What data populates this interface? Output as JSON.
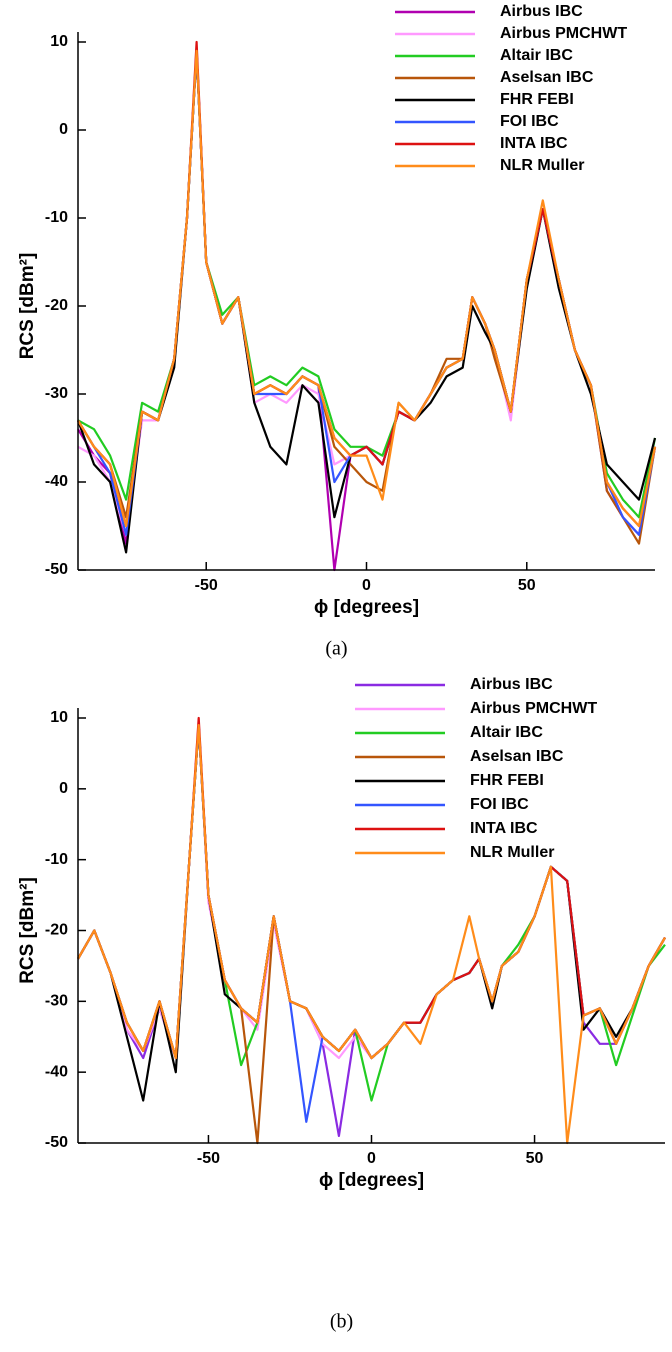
{
  "chart_data": [
    {
      "type": "line",
      "caption": "(a)",
      "xlabel": "ϕ [degrees]",
      "ylabel": "RCS [dBm²]",
      "xlim": [
        -90,
        90
      ],
      "ylim": [
        -50,
        10
      ],
      "xticks": [
        -50,
        0,
        50
      ],
      "yticks": [
        -50,
        -40,
        -30,
        -20,
        -10,
        0,
        10
      ],
      "legend": "upper right",
      "x": [
        -90,
        -85,
        -80,
        -75,
        -70,
        -65,
        -60,
        -56,
        -53,
        -50,
        -45,
        -40,
        -35,
        -30,
        -25,
        -20,
        -15,
        -10,
        -5,
        0,
        5,
        10,
        15,
        20,
        25,
        30,
        33,
        37,
        40,
        45,
        50,
        55,
        60,
        65,
        70,
        75,
        80,
        85,
        90
      ],
      "series": [
        {
          "name": "Airbus IBC",
          "color": "#b000b0",
          "values": [
            -34,
            -37,
            -39,
            -47,
            -32,
            -33,
            -26,
            -10,
            9,
            -15,
            -22,
            -19,
            -30,
            -29,
            -30,
            -28,
            -29,
            -50,
            -37,
            -36,
            -38,
            -32,
            -33,
            -30,
            -27,
            -26,
            -19,
            -22,
            -25,
            -32,
            -17,
            -9,
            -17,
            -25,
            -29,
            -41,
            -44,
            -46,
            -36
          ]
        },
        {
          "name": "Airbus PMCHWT",
          "color": "#ff99ff",
          "values": [
            -36,
            -37,
            -40,
            -46,
            -33,
            -33,
            -26,
            -10,
            9,
            -15,
            -22,
            -19,
            -31,
            -30,
            -31,
            -29,
            -30,
            -38,
            -37,
            -36,
            -38,
            -32,
            -33,
            -30,
            -27,
            -26,
            -19,
            -22,
            -25,
            -33,
            -17,
            -9,
            -17,
            -25,
            -29,
            -40,
            -44,
            -46,
            -36
          ]
        },
        {
          "name": "Altair IBC",
          "color": "#22cc22",
          "values": [
            -33,
            -34,
            -37,
            -42,
            -31,
            -32,
            -26,
            -10,
            9,
            -15,
            -21,
            -19,
            -29,
            -28,
            -29,
            -27,
            -28,
            -34,
            -36,
            -36,
            -37,
            -32,
            -33,
            -30,
            -27,
            -26,
            -19,
            -22,
            -25,
            -32,
            -17,
            -9,
            -17,
            -25,
            -29,
            -39,
            -42,
            -44,
            -35
          ]
        },
        {
          "name": "Aselsan IBC",
          "color": "#b8560a",
          "values": [
            -33,
            -36,
            -38,
            -44,
            -32,
            -33,
            -26,
            -10,
            9,
            -15,
            -22,
            -19,
            -30,
            -29,
            -30,
            -28,
            -29,
            -36,
            -38,
            -40,
            -41,
            -31,
            -33,
            -30,
            -26,
            -26,
            -19,
            -22,
            -26,
            -32,
            -17,
            -9,
            -17,
            -25,
            -29,
            -41,
            -44,
            -47,
            -36
          ]
        },
        {
          "name": "FHR FEBI",
          "color": "#000000",
          "values": [
            -33,
            -38,
            -40,
            -48,
            -32,
            -33,
            -27,
            -10,
            9,
            -15,
            -22,
            -19,
            -31,
            -36,
            -38,
            -29,
            -31,
            -44,
            -37,
            -36,
            -38,
            -32,
            -33,
            -31,
            -28,
            -27,
            -20,
            -23,
            -25,
            -32,
            -18,
            -9,
            -18,
            -25,
            -30,
            -38,
            -40,
            -42,
            -35
          ]
        },
        {
          "name": "FOI IBC",
          "color": "#3355ff",
          "values": [
            -33,
            -36,
            -39,
            -46,
            -32,
            -33,
            -26,
            -10,
            9,
            -15,
            -22,
            -19,
            -30,
            -30,
            -30,
            -28,
            -29,
            -40,
            -37,
            -36,
            -38,
            -32,
            -33,
            -30,
            -27,
            -26,
            -19,
            -22,
            -25,
            -32,
            -17,
            -9,
            -17,
            -25,
            -29,
            -40,
            -44,
            -46,
            -36
          ]
        },
        {
          "name": "INTA IBC",
          "color": "#dd1111",
          "values": [
            -33,
            -36,
            -38,
            -45,
            -32,
            -33,
            -26,
            -10,
            10,
            -15,
            -22,
            -19,
            -30,
            -29,
            -30,
            -28,
            -29,
            -35,
            -37,
            -36,
            -38,
            -32,
            -33,
            -30,
            -27,
            -26,
            -19,
            -22,
            -25,
            -32,
            -17,
            -9,
            -17,
            -25,
            -29,
            -40,
            -43,
            -45,
            -36
          ]
        },
        {
          "name": "NLR Muller",
          "color": "#ff8c1a",
          "values": [
            -33,
            -36,
            -38,
            -45,
            -32,
            -33,
            -26,
            -10,
            9,
            -15,
            -22,
            -19,
            -30,
            -29,
            -30,
            -28,
            -29,
            -35,
            -37,
            -37,
            -42,
            -31,
            -33,
            -30,
            -27,
            -26,
            -19,
            -22,
            -25,
            -32,
            -17,
            -8,
            -17,
            -25,
            -29,
            -40,
            -43,
            -45,
            -36
          ]
        }
      ]
    },
    {
      "type": "line",
      "caption": "(b)",
      "xlabel": "ϕ [degrees]",
      "ylabel": "RCS [dBm²]",
      "xlim": [
        -90,
        90
      ],
      "ylim": [
        -50,
        10
      ],
      "xticks": [
        -50,
        0,
        50
      ],
      "yticks": [
        -50,
        -40,
        -30,
        -20,
        -10,
        0,
        10
      ],
      "legend": "upper right",
      "x": [
        -90,
        -85,
        -80,
        -75,
        -70,
        -65,
        -60,
        -56,
        -53,
        -50,
        -45,
        -40,
        -35,
        -30,
        -25,
        -20,
        -15,
        -10,
        -5,
        0,
        5,
        10,
        15,
        20,
        25,
        30,
        33,
        37,
        40,
        45,
        50,
        55,
        60,
        65,
        70,
        75,
        80,
        85,
        90
      ],
      "series": [
        {
          "name": "Airbus IBC",
          "color": "#8a2be2",
          "values": [
            -24,
            -20,
            -26,
            -34,
            -38,
            -31,
            -38,
            -11,
            9,
            -15,
            -27,
            -31,
            -33,
            -18,
            -30,
            -31,
            -36,
            -49,
            -34,
            -38,
            -36,
            -33,
            -33,
            -29,
            -27,
            -26,
            -24,
            -30,
            -25,
            -23,
            -18,
            -11,
            -13,
            -33,
            -36,
            -36,
            -31,
            -25,
            -21
          ]
        },
        {
          "name": "Airbus PMCHWT",
          "color": "#ff99ff",
          "values": [
            -24,
            -20,
            -26,
            -34,
            -37,
            -31,
            -38,
            -11,
            9,
            -16,
            -27,
            -31,
            -34,
            -19,
            -30,
            -31,
            -36,
            -38,
            -35,
            -38,
            -36,
            -33,
            -33,
            -29,
            -27,
            -26,
            -24,
            -30,
            -25,
            -23,
            -18,
            -11,
            -13,
            -32,
            -31,
            -36,
            -31,
            -25,
            -21
          ]
        },
        {
          "name": "Altair IBC",
          "color": "#22cc22",
          "values": [
            -24,
            -20,
            -26,
            -33,
            -37,
            -30,
            -38,
            -11,
            9,
            -15,
            -27,
            -39,
            -33,
            -18,
            -30,
            -31,
            -35,
            -37,
            -34,
            -44,
            -36,
            -33,
            -33,
            -29,
            -27,
            -26,
            -24,
            -30,
            -25,
            -22,
            -18,
            -11,
            -13,
            -32,
            -31,
            -39,
            -32,
            -25,
            -22
          ]
        },
        {
          "name": "Aselsan IBC",
          "color": "#b8560a",
          "values": [
            -24,
            -20,
            -26,
            -33,
            -37,
            -30,
            -38,
            -11,
            9,
            -15,
            -27,
            -31,
            -50,
            -18,
            -30,
            -31,
            -35,
            -37,
            -34,
            -38,
            -36,
            -33,
            -33,
            -29,
            -27,
            -26,
            -24,
            -30,
            -25,
            -23,
            -18,
            -11,
            -13,
            -32,
            -31,
            -36,
            -31,
            -25,
            -21
          ]
        },
        {
          "name": "FHR FEBI",
          "color": "#000000",
          "values": [
            -24,
            -20,
            -26,
            -35,
            -44,
            -30,
            -40,
            -11,
            9,
            -15,
            -29,
            -31,
            -33,
            -18,
            -30,
            -31,
            -35,
            -37,
            -34,
            -38,
            -36,
            -33,
            -33,
            -29,
            -27,
            -26,
            -24,
            -31,
            -25,
            -23,
            -18,
            -11,
            -13,
            -34,
            -31,
            -35,
            -31,
            -25,
            -21
          ]
        },
        {
          "name": "FOI IBC",
          "color": "#3355ff",
          "values": [
            -24,
            -20,
            -26,
            -33,
            -37,
            -30,
            -38,
            -11,
            9,
            -15,
            -27,
            -31,
            -33,
            -18,
            -30,
            -47,
            -35,
            -37,
            -34,
            -38,
            -36,
            -33,
            -33,
            -29,
            -27,
            -26,
            -24,
            -30,
            -25,
            -23,
            -18,
            -11,
            -13,
            -32,
            -31,
            -36,
            -31,
            -25,
            -21
          ]
        },
        {
          "name": "INTA IBC",
          "color": "#dd1111",
          "values": [
            -24,
            -20,
            -26,
            -33,
            -37,
            -30,
            -38,
            -11,
            10,
            -15,
            -27,
            -31,
            -33,
            -18,
            -30,
            -31,
            -35,
            -37,
            -34,
            -38,
            -36,
            -33,
            -33,
            -29,
            -27,
            -26,
            -24,
            -30,
            -25,
            -23,
            -18,
            -11,
            -13,
            -32,
            -31,
            -36,
            -31,
            -25,
            -21
          ]
        },
        {
          "name": "NLR Muller",
          "color": "#ff8c1a",
          "values": [
            -24,
            -20,
            -26,
            -33,
            -37,
            -30,
            -38,
            -11,
            9,
            -15,
            -27,
            -31,
            -33,
            -18,
            -30,
            -31,
            -35,
            -37,
            -34,
            -38,
            -36,
            -33,
            -36,
            -29,
            -27,
            -18,
            -24,
            -30,
            -25,
            -23,
            -18,
            -11,
            -50,
            -32,
            -31,
            -36,
            -31,
            -25,
            -21
          ]
        }
      ]
    }
  ]
}
